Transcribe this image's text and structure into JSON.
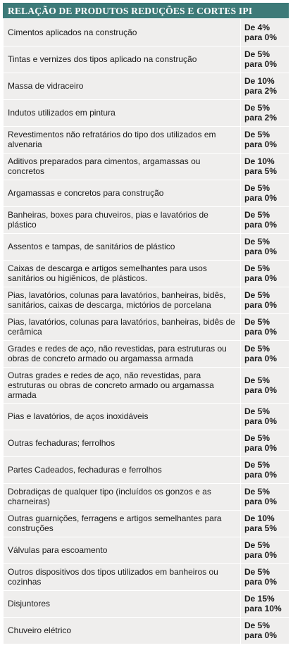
{
  "title": "RELAÇÃO DE PRODUTOS REDUÇÕES E CORTES IPI",
  "rows": [
    {
      "product": "Cimentos aplicados na construção",
      "from": "De 4%",
      "to": "para 0%"
    },
    {
      "product": "Tintas e vernizes dos tipos aplicado na construção",
      "from": "De 5%",
      "to": "para 0%"
    },
    {
      "product": "Massa de vidraceiro",
      "from": "De 10%",
      "to": "para 2%"
    },
    {
      "product": "Indutos utilizados em pintura",
      "from": "De 5%",
      "to": "para 2%"
    },
    {
      "product": "Revestimentos não refratários do tipo dos utilizados em alvenaria",
      "from": "De 5%",
      "to": "para 0%"
    },
    {
      "product": "Aditivos preparados para cimentos, argamassas ou concretos",
      "from": "De 10%",
      "to": "para 5%"
    },
    {
      "product": "Argamassas e concretos para construção",
      "from": "De 5%",
      "to": "para 0%"
    },
    {
      "product": "Banheiras, boxes para chuveiros, pias e lavatórios de plástico",
      "from": "De 5%",
      "to": "para 0%"
    },
    {
      "product": "Assentos e tampas, de sanitários de plástico",
      "from": "De 5%",
      "to": "para 0%"
    },
    {
      "product": "Caixas de descarga e artigos semelhantes para usos sanitários ou higiênicos, de plásticos.",
      "from": "De 5%",
      "to": "para 0%"
    },
    {
      "product": "Pias, lavatórios, colunas para lavatórios, banheiras, bidês, sanitários, caixas de descarga, mictórios de porcelana",
      "from": "De 5%",
      "to": "para 0%"
    },
    {
      "product": "Pias, lavatórios, colunas para lavatórios, banheiras, bidês de cerâmica",
      "from": "De 5%",
      "to": "para 0%"
    },
    {
      "product": "Grades e redes de aço, não revestidas, para estruturas ou obras de concreto armado ou argamassa armada",
      "from": "De 5%",
      "to": "para 0%"
    },
    {
      "product": "Outras grades e redes de aço, não revestidas, para estruturas ou obras de concreto armado ou argamassa armada",
      "from": "De 5%",
      "to": "para 0%"
    },
    {
      "product": "Pias e lavatórios, de aços inoxidáveis",
      "from": "De 5%",
      "to": "para 0%"
    },
    {
      "product": "Outras fechaduras; ferrolhos",
      "from": "De 5%",
      "to": "para 0%"
    },
    {
      "product": "Partes Cadeados, fechaduras e ferrolhos",
      "from": "De 5%",
      "to": "para 0%"
    },
    {
      "product": "Dobradiças de qualquer tipo (incluídos os gonzos e as charneiras)",
      "from": "De 5%",
      "to": "para 0%"
    },
    {
      "product": "Outras guarnições, ferragens e artigos semelhantes para construções",
      "from": "De 10%",
      "to": "para 5%"
    },
    {
      "product": "Válvulas para escoamento",
      "from": "De 5%",
      "to": "para 0%"
    },
    {
      "product": "Outros dispositivos dos tipos utilizados em banheiros ou cozinhas",
      "from": "De 5%",
      "to": "para 0%"
    },
    {
      "product": "Disjuntores",
      "from": "De 15%",
      "to": "para 10%"
    },
    {
      "product": "Chuveiro elétrico",
      "from": "De 5%",
      "to": "para 0%"
    }
  ]
}
